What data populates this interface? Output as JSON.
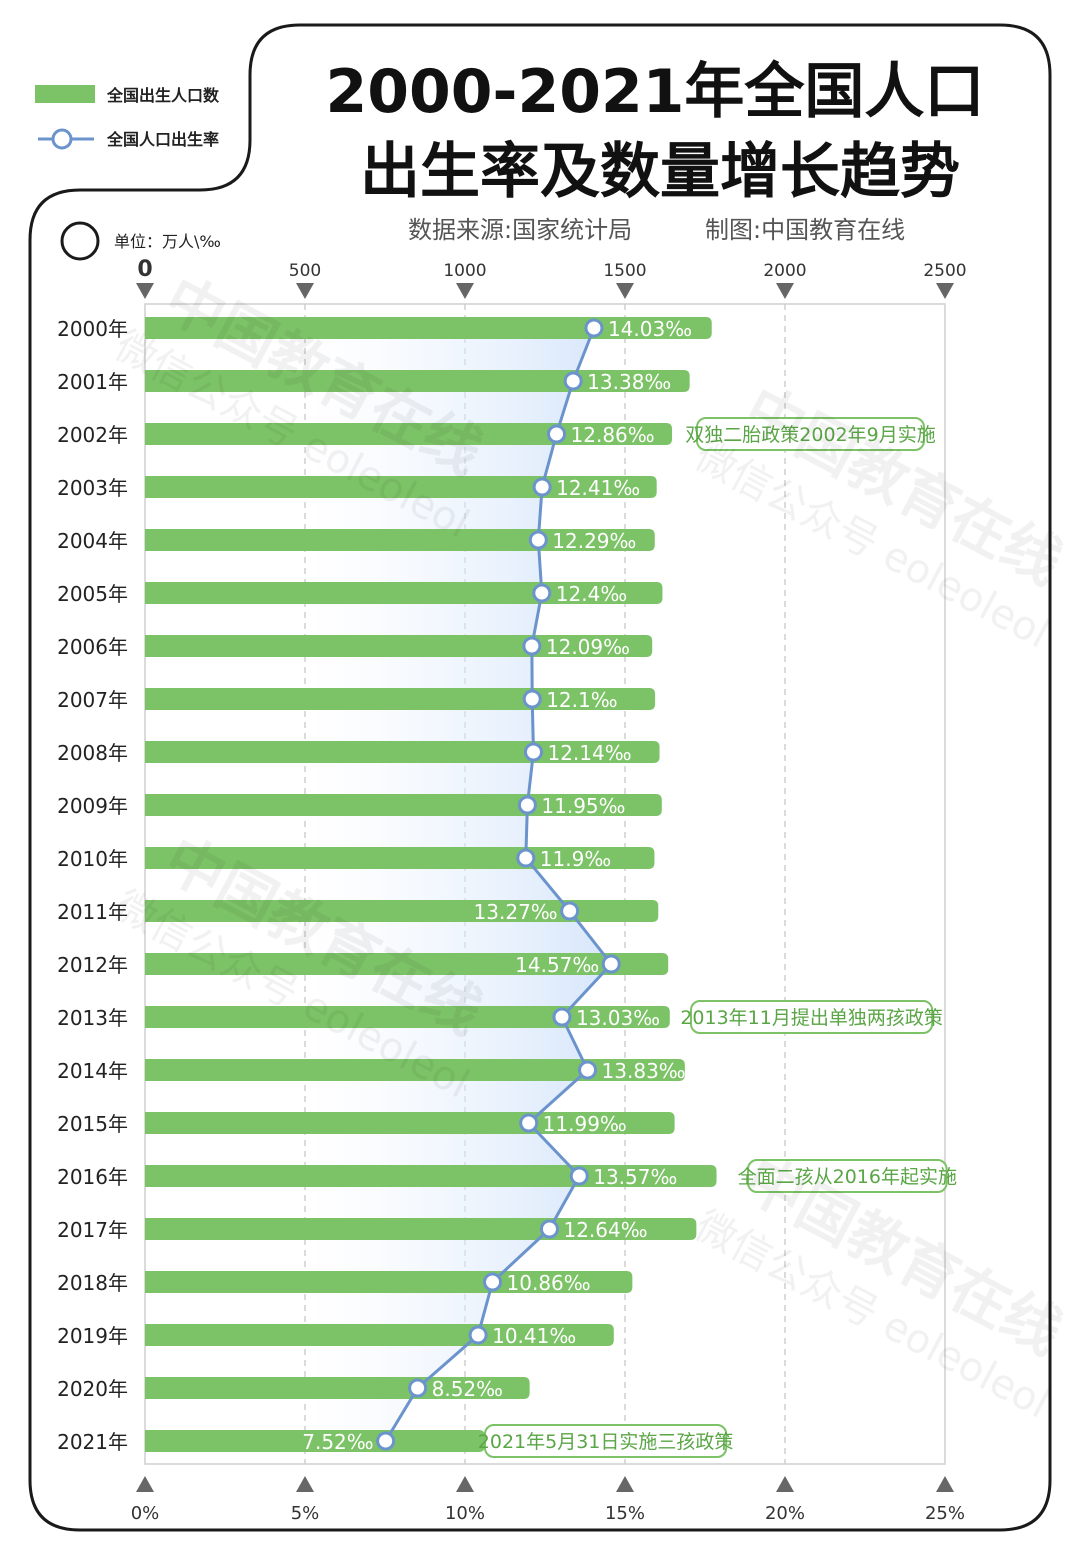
{
  "title_line1": "2000-2021年全国人口",
  "title_line2": "出生率及数量增长趋势",
  "source": "数据来源:国家统计局",
  "credit": "制图:中国教育在线",
  "unit": "单位：万人\\‰",
  "legend": {
    "bar": "全国出生人口数",
    "line": "全国人口出生率"
  },
  "watermarks": [
    "中国教育在线",
    "微信公众号 eoleoleol"
  ],
  "colors": {
    "bar": "#7cc266",
    "line": "#6b93cc",
    "fill": "#dce9fb",
    "annotation": "#7cc266",
    "frame": "#1a1a1a"
  },
  "chart_data": {
    "type": "bar",
    "orientation": "horizontal",
    "categories": [
      "2000年",
      "2001年",
      "2002年",
      "2003年",
      "2004年",
      "2005年",
      "2006年",
      "2007年",
      "2008年",
      "2009年",
      "2010年",
      "2011年",
      "2012年",
      "2013年",
      "2014年",
      "2015年",
      "2016年",
      "2017年",
      "2018年",
      "2019年",
      "2020年",
      "2021年"
    ],
    "series": [
      {
        "name": "全国出生人口数",
        "type": "bar",
        "axis": "top",
        "values": [
          1771,
          1702,
          1647,
          1599,
          1593,
          1617,
          1585,
          1594,
          1608,
          1615,
          1592,
          1604,
          1635,
          1640,
          1687,
          1655,
          1786,
          1723,
          1523,
          1465,
          1202,
          1062
        ]
      },
      {
        "name": "全国人口出生率",
        "type": "line",
        "axis": "bottom",
        "values": [
          14.03,
          13.38,
          12.86,
          12.41,
          12.29,
          12.4,
          12.09,
          12.1,
          12.14,
          11.95,
          11.9,
          13.27,
          14.57,
          13.03,
          13.83,
          11.99,
          13.57,
          12.64,
          10.86,
          10.41,
          8.52,
          7.52
        ],
        "labels": [
          "14.03‰",
          "13.38‰",
          "12.86‰",
          "12.41‰",
          "12.29‰",
          "12.4‰",
          "12.09‰",
          "12.1‰",
          "12.14‰",
          "11.95‰",
          "11.9‰",
          "13.27‰",
          "14.57‰",
          "13.03‰",
          "13.83‰",
          "11.99‰",
          "13.57‰",
          "12.64‰",
          "10.86‰",
          "10.41‰",
          "8.52‰",
          "7.52‰"
        ]
      }
    ],
    "top_axis": {
      "min": 0,
      "max": 2500,
      "ticks": [
        "0",
        "500",
        "1000",
        "1500",
        "2000",
        "2500"
      ]
    },
    "bottom_axis": {
      "min": 0,
      "max": 25,
      "ticks": [
        "0%",
        "5%",
        "10%",
        "15%",
        "20%",
        "25%"
      ]
    },
    "annotations": [
      {
        "category": "2002年",
        "text": "双独二胎政策2002年9月实施"
      },
      {
        "category": "2013年",
        "text": "2013年11月提出单独两孩政策"
      },
      {
        "category": "2016年",
        "text": "全面二孩从2016年起实施"
      },
      {
        "category": "2021年",
        "text": "2021年5月31日实施三孩政策"
      }
    ],
    "grid": "vertical dashed",
    "legend_position": "top-left"
  }
}
